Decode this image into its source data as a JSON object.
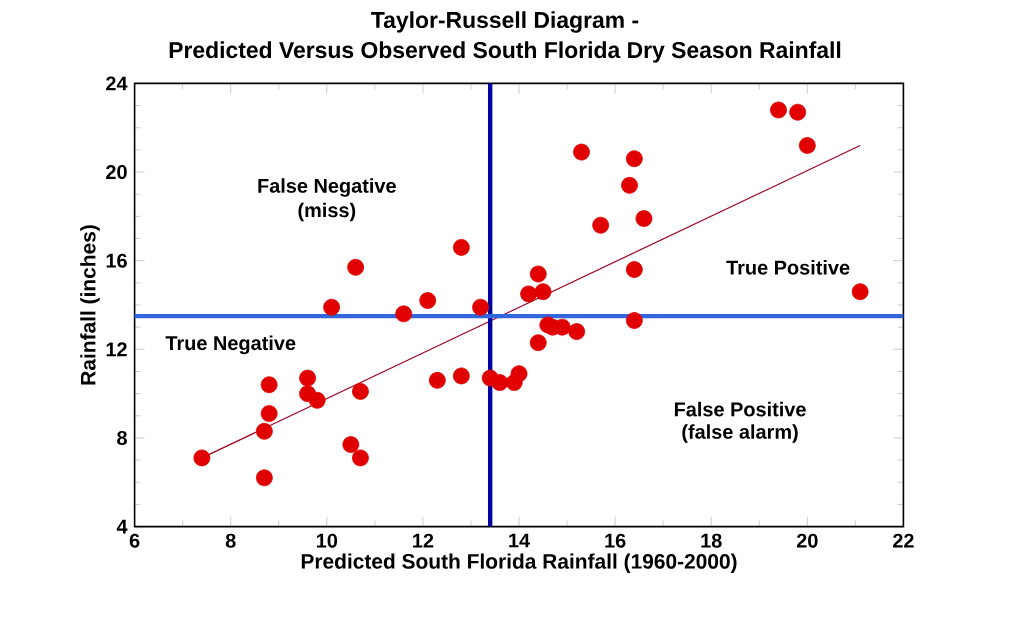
{
  "chart_data": {
    "type": "scatter",
    "title": "Taylor-Russell Diagram -",
    "subtitle": "Predicted Versus Observed South Florida Dry Season Rainfall",
    "xlabel": "Predicted South Florida Rainfall (1960-2000)",
    "ylabel": "Rainfall (inches)",
    "xlim": [
      6,
      22
    ],
    "xticks": [
      6,
      8,
      10,
      12,
      14,
      16,
      18,
      20,
      22
    ],
    "ylim": [
      4,
      24
    ],
    "yticks": [
      4,
      8,
      12,
      16,
      20,
      24
    ],
    "grid": false,
    "series": [
      {
        "marker": "circle",
        "color": "#e00000",
        "x": [
          7.4,
          8.7,
          8.7,
          8.8,
          8.8,
          9.6,
          9.6,
          9.8,
          10.7,
          10.5,
          10.7,
          10.1,
          10.6,
          11.6,
          12.1,
          12.3,
          12.8,
          12.8,
          13.2,
          13.4,
          13.6,
          13.9,
          14.0,
          14.2,
          14.4,
          14.5,
          14.6,
          14.4,
          14.7,
          14.9,
          15.2,
          15.3,
          15.7,
          16.4,
          16.4,
          16.6,
          16.4,
          16.3,
          19.4,
          19.8,
          20.0,
          21.1
        ],
        "values": [
          7.1,
          6.2,
          8.3,
          9.1,
          10.4,
          10.7,
          10.0,
          9.7,
          10.1,
          7.7,
          7.1,
          13.9,
          15.7,
          13.6,
          14.2,
          10.6,
          16.6,
          10.8,
          13.9,
          10.7,
          10.5,
          10.5,
          10.9,
          14.5,
          15.4,
          14.6,
          13.1,
          12.3,
          13.0,
          13.0,
          12.8,
          20.9,
          17.6,
          13.3,
          15.6,
          17.9,
          20.6,
          19.4,
          22.8,
          22.7,
          21.2,
          14.6
        ]
      },
      {
        "type": "line",
        "marker": "none",
        "color": "#a00020",
        "x": [
          7.4,
          21.1
        ],
        "values": [
          7.1,
          21.2
        ]
      }
    ],
    "ref_lines": [
      {
        "axis": "x",
        "value": 13.4,
        "color": "#0000a0"
      },
      {
        "axis": "y",
        "value": 13.5,
        "color": "#3366dd"
      }
    ],
    "annotations": [
      "False Negative",
      "(miss)",
      "True Negative",
      "True Positive",
      "False Positive",
      "(false alarm)"
    ]
  }
}
